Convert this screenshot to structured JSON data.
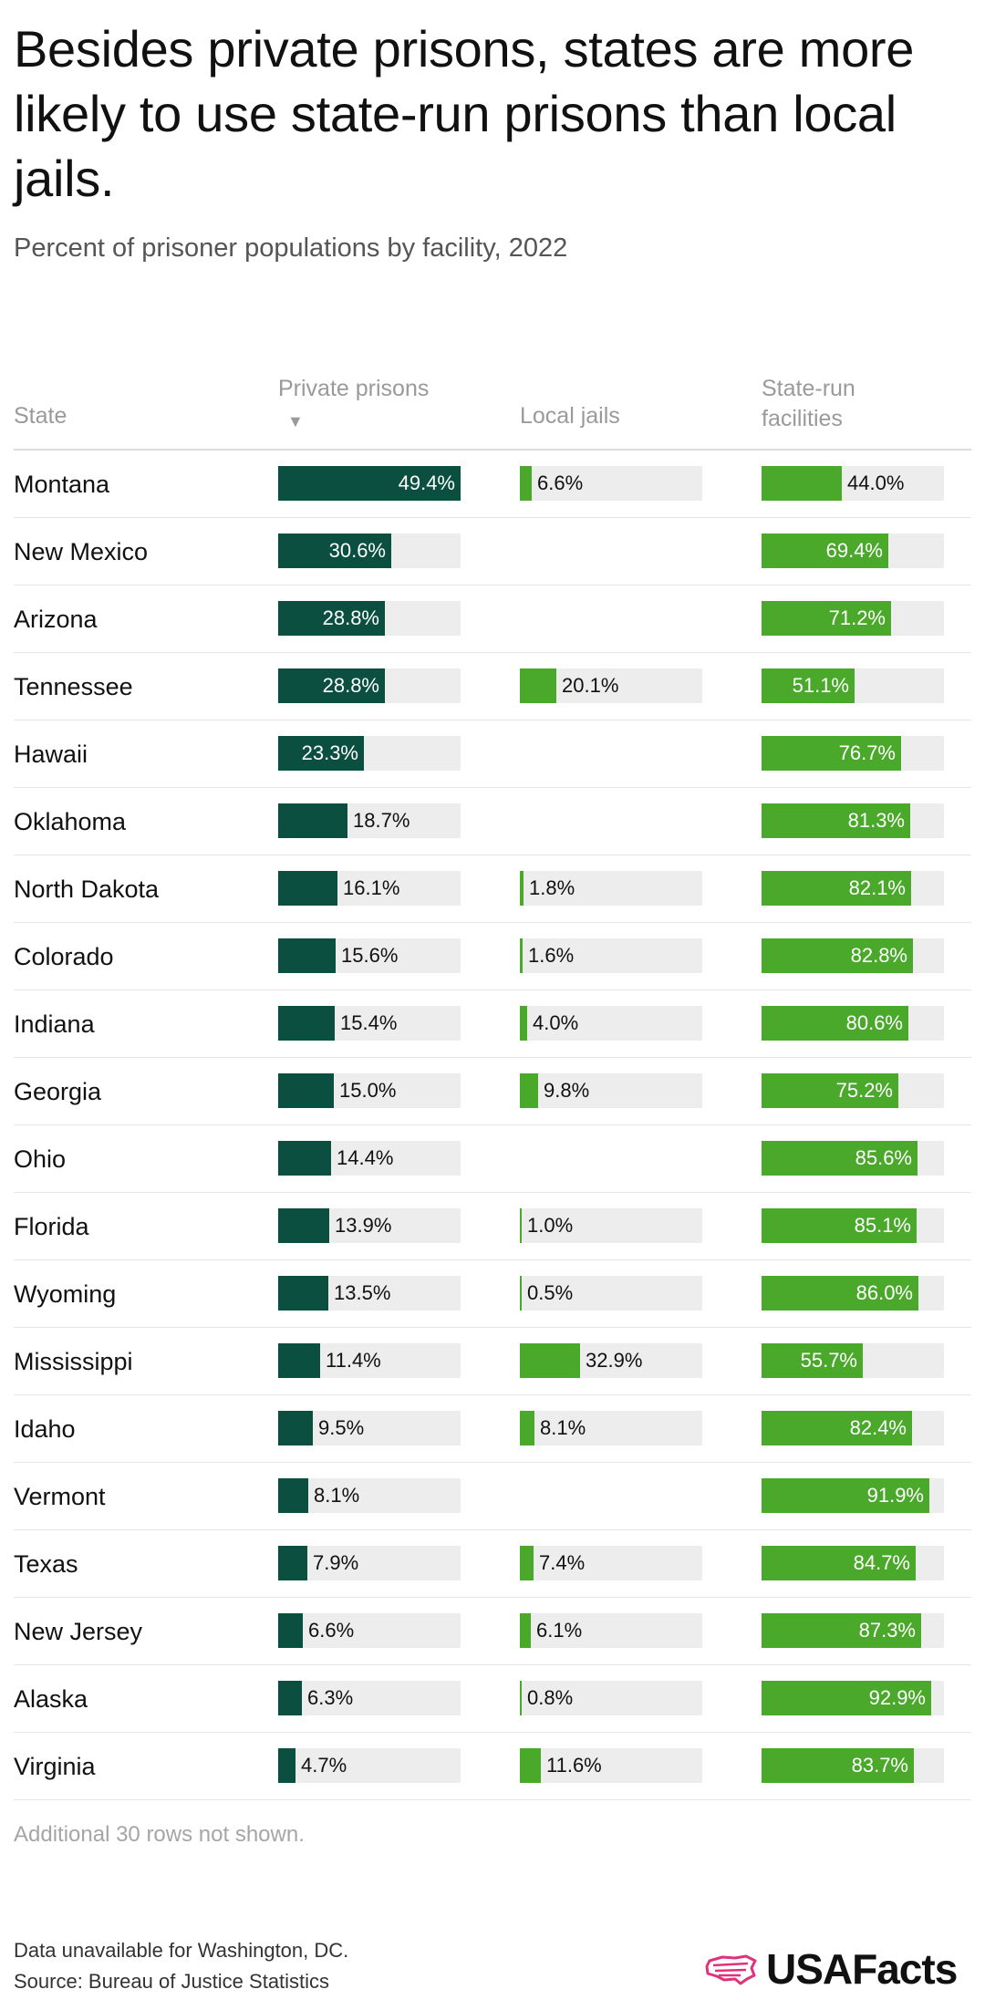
{
  "title": "Besides private prisons, states are more likely to use state-run prisons than local jails.",
  "subtitle": "Percent of prisoner populations by facility, 2022",
  "columns": {
    "state": "State",
    "private": "Private prisons",
    "local": "Local jails",
    "state_run": "State-run facilities",
    "sort_icon": "▼"
  },
  "colors": {
    "private": "#0a4f3f",
    "local": "#4aa82b",
    "state_run": "#4aa82b",
    "track": "#ededed",
    "logo_accent": "#e0317a"
  },
  "chart_data": {
    "type": "table",
    "unit": "%",
    "ranges": {
      "private": [
        0,
        49.4
      ],
      "local": [
        0,
        100
      ],
      "state_run": [
        0,
        100
      ]
    },
    "rows": [
      {
        "state": "Montana",
        "private": 49.4,
        "local": 6.6,
        "state_run": 44.0,
        "private_label": "49.4%",
        "local_label": "6.6%",
        "state_run_label": "44.0%"
      },
      {
        "state": "New Mexico",
        "private": 30.6,
        "local": null,
        "state_run": 69.4,
        "private_label": "30.6%",
        "local_label": "",
        "state_run_label": "69.4%"
      },
      {
        "state": "Arizona",
        "private": 28.8,
        "local": null,
        "state_run": 71.2,
        "private_label": "28.8%",
        "local_label": "",
        "state_run_label": "71.2%"
      },
      {
        "state": "Tennessee",
        "private": 28.8,
        "local": 20.1,
        "state_run": 51.1,
        "private_label": "28.8%",
        "local_label": "20.1%",
        "state_run_label": "51.1%"
      },
      {
        "state": "Hawaii",
        "private": 23.3,
        "local": null,
        "state_run": 76.7,
        "private_label": "23.3%",
        "local_label": "",
        "state_run_label": "76.7%"
      },
      {
        "state": "Oklahoma",
        "private": 18.7,
        "local": null,
        "state_run": 81.3,
        "private_label": "18.7%",
        "local_label": "",
        "state_run_label": "81.3%"
      },
      {
        "state": "North Dakota",
        "private": 16.1,
        "local": 1.8,
        "state_run": 82.1,
        "private_label": "16.1%",
        "local_label": "1.8%",
        "state_run_label": "82.1%"
      },
      {
        "state": "Colorado",
        "private": 15.6,
        "local": 1.6,
        "state_run": 82.8,
        "private_label": "15.6%",
        "local_label": "1.6%",
        "state_run_label": "82.8%"
      },
      {
        "state": "Indiana",
        "private": 15.4,
        "local": 4.0,
        "state_run": 80.6,
        "private_label": "15.4%",
        "local_label": "4.0%",
        "state_run_label": "80.6%"
      },
      {
        "state": "Georgia",
        "private": 15.0,
        "local": 9.8,
        "state_run": 75.2,
        "private_label": "15.0%",
        "local_label": "9.8%",
        "state_run_label": "75.2%"
      },
      {
        "state": "Ohio",
        "private": 14.4,
        "local": null,
        "state_run": 85.6,
        "private_label": "14.4%",
        "local_label": "",
        "state_run_label": "85.6%"
      },
      {
        "state": "Florida",
        "private": 13.9,
        "local": 1.0,
        "state_run": 85.1,
        "private_label": "13.9%",
        "local_label": "1.0%",
        "state_run_label": "85.1%"
      },
      {
        "state": "Wyoming",
        "private": 13.5,
        "local": 0.5,
        "state_run": 86.0,
        "private_label": "13.5%",
        "local_label": "0.5%",
        "state_run_label": "86.0%"
      },
      {
        "state": "Mississippi",
        "private": 11.4,
        "local": 32.9,
        "state_run": 55.7,
        "private_label": "11.4%",
        "local_label": "32.9%",
        "state_run_label": "55.7%"
      },
      {
        "state": "Idaho",
        "private": 9.5,
        "local": 8.1,
        "state_run": 82.4,
        "private_label": "9.5%",
        "local_label": "8.1%",
        "state_run_label": "82.4%"
      },
      {
        "state": "Vermont",
        "private": 8.1,
        "local": null,
        "state_run": 91.9,
        "private_label": "8.1%",
        "local_label": "",
        "state_run_label": "91.9%"
      },
      {
        "state": "Texas",
        "private": 7.9,
        "local": 7.4,
        "state_run": 84.7,
        "private_label": "7.9%",
        "local_label": "7.4%",
        "state_run_label": "84.7%"
      },
      {
        "state": "New Jersey",
        "private": 6.6,
        "local": 6.1,
        "state_run": 87.3,
        "private_label": "6.6%",
        "local_label": "6.1%",
        "state_run_label": "87.3%"
      },
      {
        "state": "Alaska",
        "private": 6.3,
        "local": 0.8,
        "state_run": 92.9,
        "private_label": "6.3%",
        "local_label": "0.8%",
        "state_run_label": "92.9%"
      },
      {
        "state": "Virginia",
        "private": 4.7,
        "local": 11.6,
        "state_run": 83.7,
        "private_label": "4.7%",
        "local_label": "11.6%",
        "state_run_label": "83.7%"
      }
    ]
  },
  "footnote": "Additional 30 rows not shown.",
  "note": "Data unavailable for Washington, DC.",
  "source": "Source: Bureau of Justice Statistics",
  "logo": {
    "text": "USAFacts",
    "icon": "us-map-logo-icon"
  }
}
